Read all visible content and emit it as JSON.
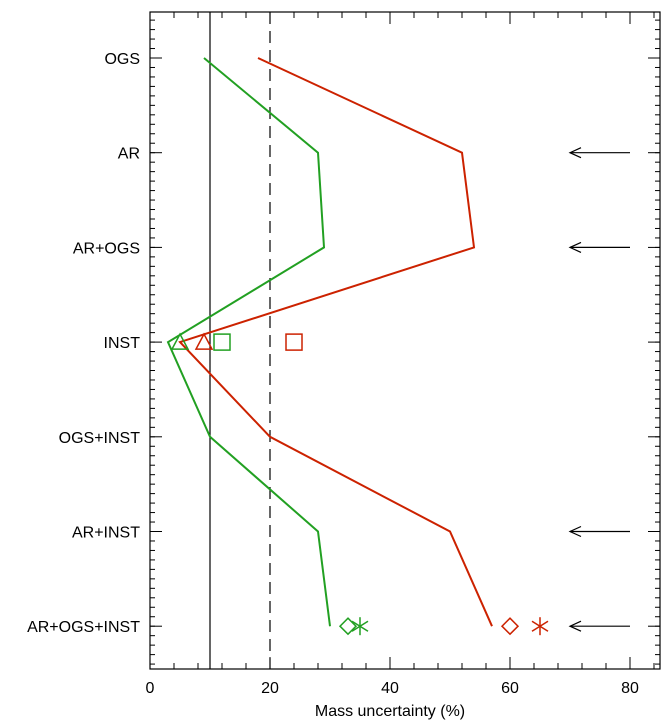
{
  "chart_data": {
    "type": "line",
    "title": "",
    "xlabel": "Mass uncertainty (%)",
    "ylabel": "",
    "xlim": [
      0,
      85
    ],
    "xticks": [
      0,
      20,
      40,
      60,
      80
    ],
    "xtick_labels": [
      "0",
      "20",
      "40",
      "60",
      "80"
    ],
    "categories": [
      "OGS",
      "AR",
      "AR+OGS",
      "INST",
      "OGS+INST",
      "AR+INST",
      "AR+OGS+INST"
    ],
    "grid": false,
    "legend": "none",
    "reference_lines": [
      {
        "x": 10,
        "style": "solid"
      },
      {
        "x": 20,
        "style": "dashed"
      }
    ],
    "series": [
      {
        "color": "#cc2200",
        "values": [
          18,
          52,
          54,
          5,
          20,
          50,
          57
        ]
      },
      {
        "color": "#22a022",
        "values": [
          9,
          28,
          29,
          3,
          10,
          28,
          30
        ]
      }
    ],
    "markers": [
      {
        "category": "INST",
        "x": 9,
        "shape": "triangle",
        "color": "#cc2200"
      },
      {
        "category": "INST",
        "x": 24,
        "shape": "square",
        "color": "#cc2200"
      },
      {
        "category": "INST",
        "x": 5,
        "shape": "triangle",
        "color": "#22a022"
      },
      {
        "category": "INST",
        "x": 12,
        "shape": "square",
        "color": "#22a022"
      },
      {
        "category": "AR+OGS+INST",
        "x": 33,
        "shape": "diamond",
        "color": "#22a022"
      },
      {
        "category": "AR+OGS+INST",
        "x": 35,
        "shape": "asterisk",
        "color": "#22a022"
      },
      {
        "category": "AR+OGS+INST",
        "x": 60,
        "shape": "diamond",
        "color": "#cc2200"
      },
      {
        "category": "AR+OGS+INST",
        "x": 65,
        "shape": "asterisk",
        "color": "#cc2200"
      }
    ],
    "arrows": [
      {
        "category": "AR",
        "from": 80,
        "to": 70
      },
      {
        "category": "AR+OGS",
        "from": 80,
        "to": 70
      },
      {
        "category": "AR+INST",
        "from": 80,
        "to": 70
      },
      {
        "category": "AR+OGS+INST",
        "from": 80,
        "to": 70
      }
    ]
  }
}
